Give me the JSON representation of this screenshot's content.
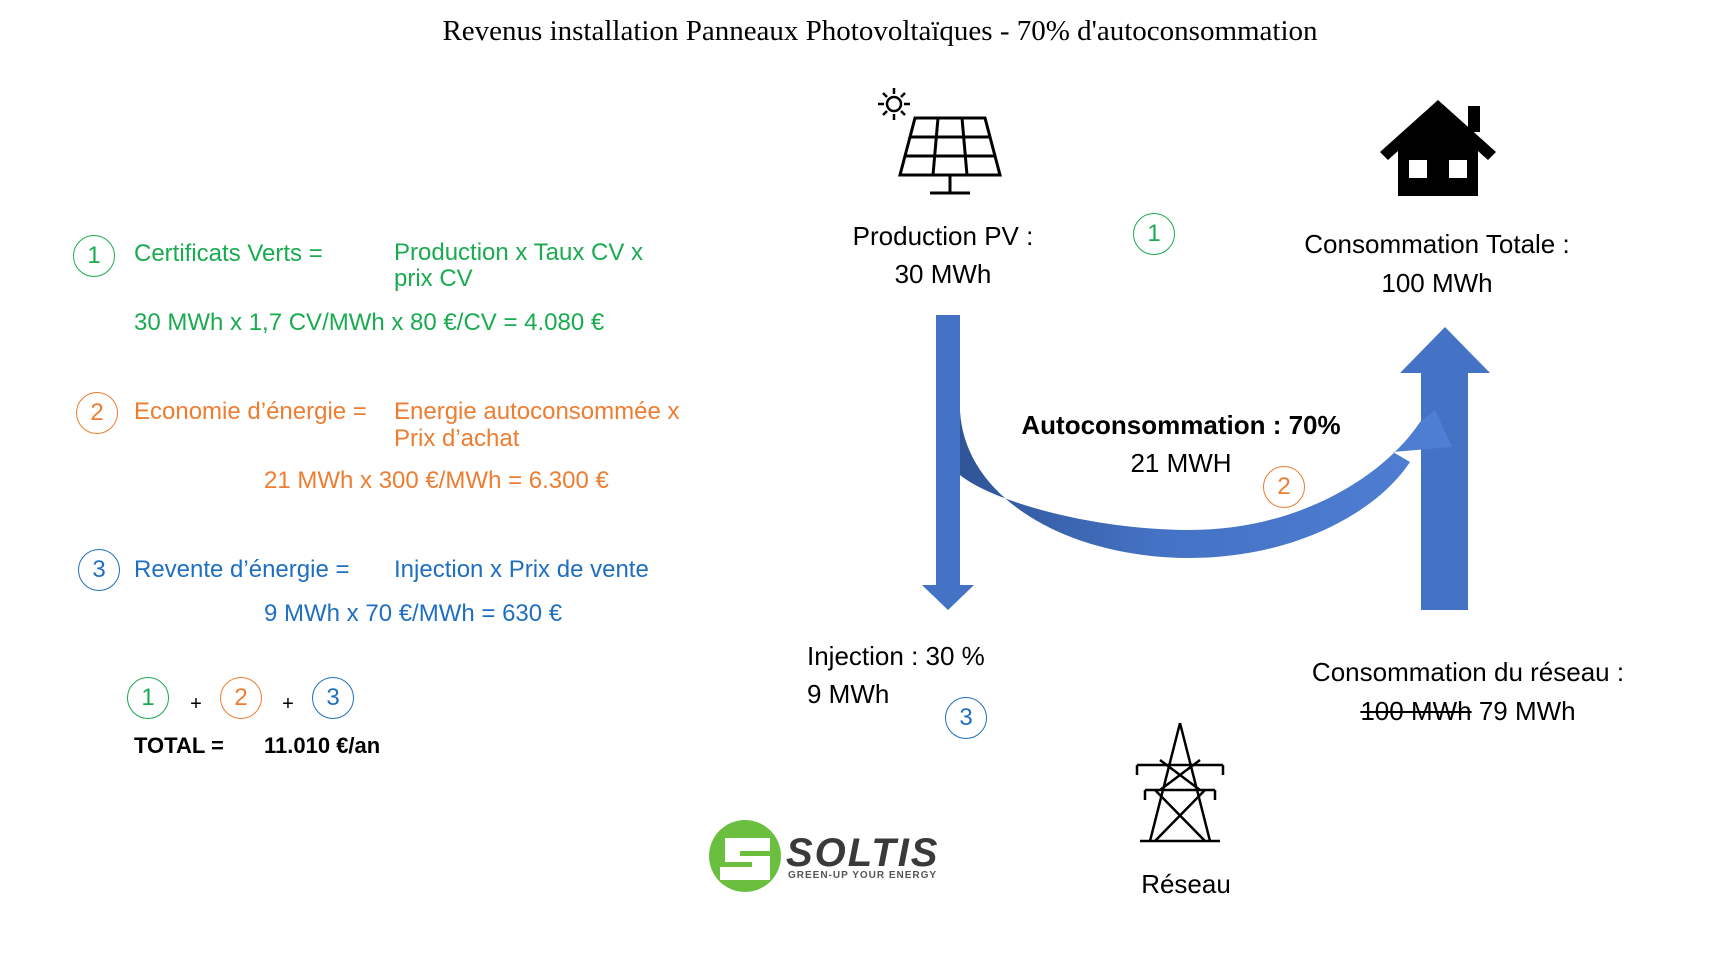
{
  "title": "Revenus installation Panneaux Photovoltaïques - 70% d'autoconsommation",
  "formulas": [
    {
      "number": "1",
      "label": "Certificats Verts =",
      "formula": "Production x Taux CV x prix CV",
      "calculation": "30 MWh x 1,7 CV/MWh x 80 €/CV = 4.080 €"
    },
    {
      "number": "2",
      "label": "Economie d’énergie =",
      "formula": "Energie autoconsommée x Prix d’achat",
      "calculation": "21 MWh x 300 €/MWh = 6.300 €"
    },
    {
      "number": "3",
      "label": "Revente d’énergie =",
      "formula": "Injection x Prix de vente",
      "calculation": "9 MWh x 70 €/MWh = 630 €"
    }
  ],
  "total": {
    "sum": [
      "1",
      "+",
      "2",
      "+",
      "3"
    ],
    "label": "TOTAL =",
    "value": "11.010 €/an"
  },
  "diagram": {
    "production": {
      "label": "Production PV :",
      "value": "30 MWh",
      "step": "1"
    },
    "consumption": {
      "label": "Consommation Totale :",
      "value": "100 MWh"
    },
    "self_consumption": {
      "label": "Autoconsommation : 70%",
      "value": "21 MWH",
      "step": "2"
    },
    "injection": {
      "label": "Injection : 30 %",
      "value": "9 MWh",
      "step": "3"
    },
    "grid_consumption": {
      "label": "Consommation du réseau :",
      "old_value": "100 MWh",
      "value": "79 MWh"
    },
    "grid": "Réseau"
  },
  "logo": {
    "name": "SOLTIS",
    "tagline": "GREEN-UP YOUR ENERGY"
  }
}
